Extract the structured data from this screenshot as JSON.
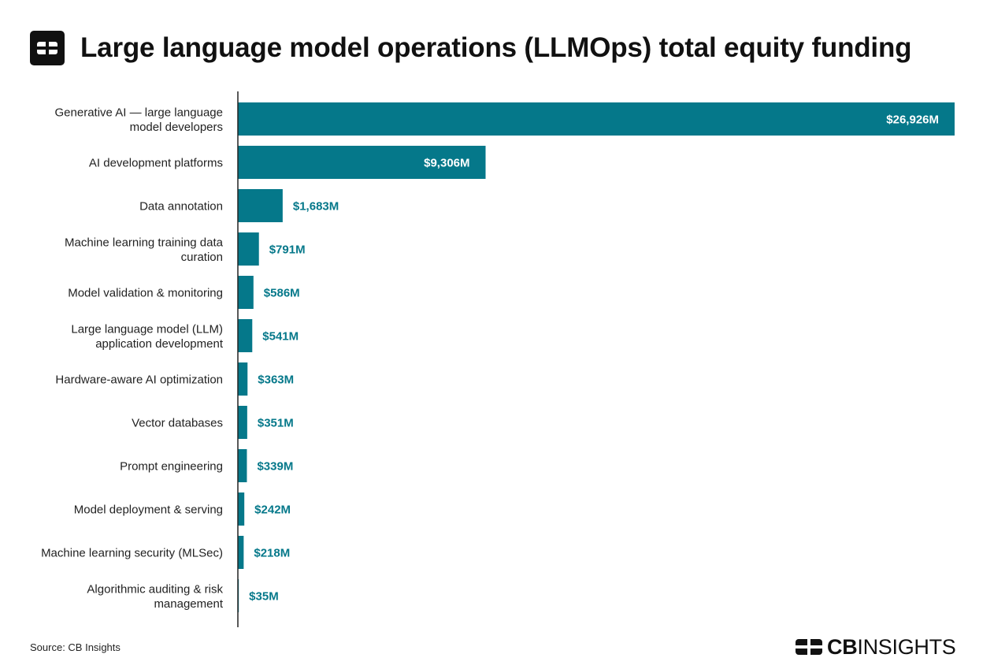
{
  "title": "Large language model operations (LLMOps) total equity funding",
  "source": "Source: CB Insights",
  "brand": {
    "bold": "CB",
    "light": "INSIGHTS"
  },
  "colors": {
    "bar": "#05788a",
    "label_outside": "#05788a",
    "label_inside": "#ffffff",
    "axis": "#222222"
  },
  "chart_data": {
    "type": "bar",
    "orientation": "horizontal",
    "title": "Large language model operations (LLMOps) total equity funding",
    "xlabel": "",
    "ylabel": "",
    "unit": "$M",
    "categories": [
      [
        "Generative AI — large language",
        "model developers"
      ],
      [
        "AI development platforms"
      ],
      [
        "Data annotation"
      ],
      [
        "Machine learning training data",
        "curation"
      ],
      [
        "Model validation & monitoring"
      ],
      [
        "Large language model (LLM)",
        "application development"
      ],
      [
        "Hardware-aware AI optimization"
      ],
      [
        "Vector databases"
      ],
      [
        "Prompt engineering"
      ],
      [
        "Model deployment & serving"
      ],
      [
        "Machine learning security (MLSec)"
      ],
      [
        "Algorithmic auditing & risk",
        "management"
      ]
    ],
    "values": [
      26926,
      9306,
      1683,
      791,
      586,
      541,
      363,
      351,
      339,
      242,
      218,
      35
    ],
    "value_labels": [
      "$26,926M",
      "$9,306M",
      "$1,683M",
      "$791M",
      "$586M",
      "$541M",
      "$363M",
      "$351M",
      "$339M",
      "$242M",
      "$218M",
      "$35M"
    ],
    "xlim": [
      0,
      26926
    ],
    "grid": false,
    "legend": "none"
  }
}
